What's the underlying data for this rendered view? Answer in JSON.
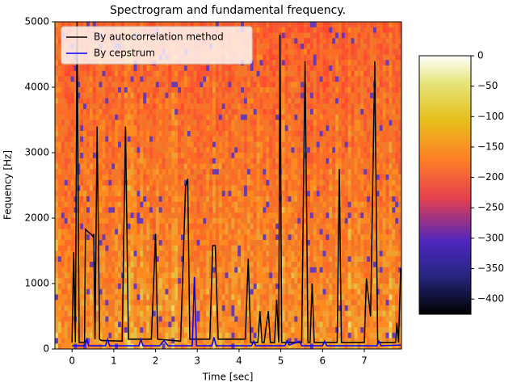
{
  "chart_data": {
    "type": "line",
    "title": "Spectrogram and fundamental frequency.",
    "x_label": "Time [sec]",
    "y_label": "Fequency [Hz]",
    "xlim": [
      -0.41,
      7.89
    ],
    "ylim": [
      0,
      5000
    ],
    "xticks": [
      0,
      1,
      2,
      3,
      4,
      5,
      6,
      7
    ],
    "yticks": [
      0,
      1000,
      2000,
      3000,
      4000,
      5000
    ],
    "legend": "upper left",
    "series": [
      {
        "name": "By autocorrelation method",
        "color": "#000000",
        "x": [
          0,
          0.04,
          0.08,
          0.12,
          0.17,
          0.3,
          0.32,
          0.4,
          0.45,
          0.5,
          0.52,
          0.55,
          0.6,
          0.66,
          0.7,
          1.2,
          1.28,
          1.35,
          1.9,
          2.0,
          2.05,
          2.6,
          2.72,
          2.77,
          2.82,
          3.3,
          3.37,
          3.43,
          3.5,
          4.15,
          4.22,
          4.28,
          4.45,
          4.5,
          4.55,
          4.6,
          4.7,
          4.75,
          4.85,
          4.9,
          4.95,
          4.98,
          5.02,
          5.5,
          5.58,
          5.65,
          5.7,
          5.75,
          5.8,
          6.35,
          6.4,
          6.45,
          7.0,
          7.05,
          7.15,
          7.25,
          7.32,
          7.75,
          7.78,
          7.82,
          7.87
        ],
        "values": [
          100,
          1480,
          100,
          5000,
          100,
          100,
          1830,
          1780,
          1760,
          1720,
          1760,
          150,
          3400,
          150,
          130,
          120,
          3400,
          150,
          150,
          1760,
          150,
          120,
          2500,
          2600,
          150,
          150,
          1580,
          1580,
          150,
          150,
          1380,
          100,
          100,
          580,
          100,
          100,
          580,
          100,
          100,
          750,
          100,
          4800,
          100,
          100,
          4400,
          100,
          100,
          1000,
          100,
          100,
          2750,
          100,
          100,
          1080,
          500,
          4400,
          100,
          100,
          400,
          100,
          1230
        ]
      },
      {
        "name": "By cepstrum",
        "color": "#0000ff",
        "x": [
          0,
          0.3,
          0.35,
          0.4,
          0.8,
          0.85,
          0.9,
          1.6,
          1.65,
          1.7,
          2.1,
          2.2,
          2.3,
          2.88,
          2.93,
          2.98,
          3.35,
          3.4,
          3.45,
          4.3,
          4.35,
          4.4,
          5.1,
          5.15,
          5.2,
          5.45,
          5.5,
          6.0,
          6.05,
          6.1,
          7.3,
          7.35,
          7.4,
          7.87
        ],
        "values": [
          50,
          50,
          150,
          50,
          50,
          150,
          50,
          50,
          150,
          50,
          50,
          130,
          50,
          50,
          1100,
          50,
          50,
          180,
          50,
          50,
          120,
          50,
          50,
          130,
          60,
          120,
          50,
          50,
          120,
          50,
          50,
          120,
          50,
          60
        ]
      }
    ],
    "colorbar": {
      "lim": [
        -425,
        0
      ],
      "ticks": [
        0,
        {
          "value": -50,
          "label": "−50"
        },
        {
          "value": -100,
          "label": "−100"
        },
        {
          "value": -150,
          "label": "−150"
        },
        {
          "value": -200,
          "label": "−200"
        },
        {
          "value": -250,
          "label": "−250"
        },
        {
          "value": -300,
          "label": "−300"
        },
        {
          "value": -350,
          "label": "−350"
        },
        {
          "value": -400,
          "label": "−400"
        }
      ]
    }
  }
}
